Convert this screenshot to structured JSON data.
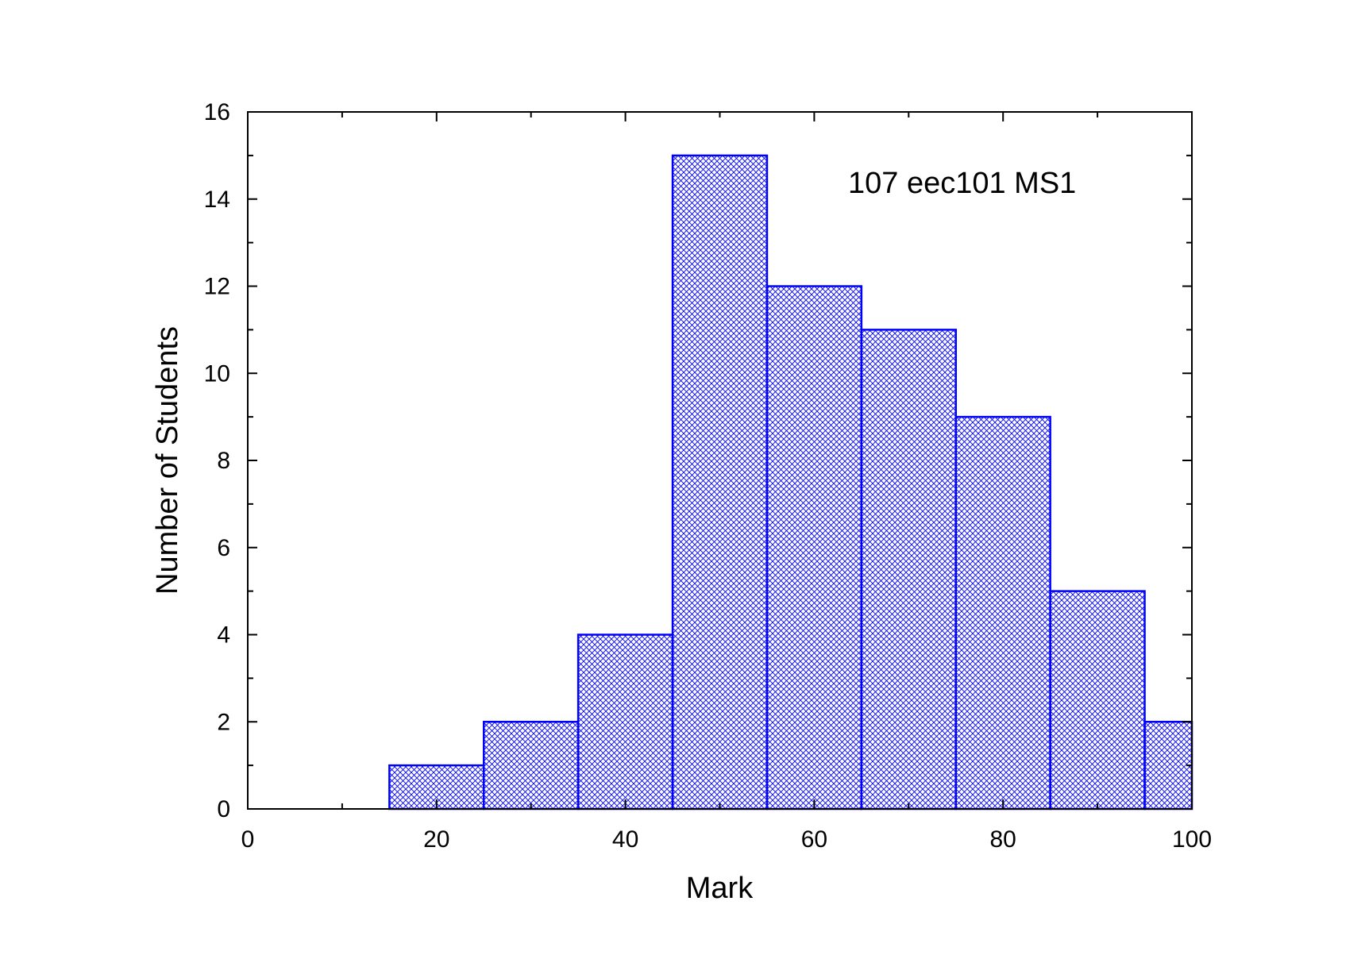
{
  "chart_data": {
    "type": "bar",
    "annotation": "107 eec101 MS1",
    "xlabel": "Mark",
    "ylabel": "Number of Students",
    "xlim": [
      0,
      100
    ],
    "ylim": [
      0,
      16
    ],
    "x_ticks": [
      0,
      20,
      40,
      60,
      80,
      100
    ],
    "x_tick_labels": [
      "0",
      "20",
      "40",
      "60",
      "80",
      "100"
    ],
    "y_ticks": [
      0,
      2,
      4,
      6,
      8,
      10,
      12,
      14,
      16
    ],
    "y_tick_labels": [
      "0",
      "2",
      "4",
      "6",
      "8",
      "10",
      "12",
      "14",
      "16"
    ],
    "grid": false,
    "bins": [
      {
        "from": 15,
        "to": 25,
        "count": 1
      },
      {
        "from": 25,
        "to": 35,
        "count": 2
      },
      {
        "from": 35,
        "to": 45,
        "count": 4
      },
      {
        "from": 45,
        "to": 55,
        "count": 15
      },
      {
        "from": 55,
        "to": 65,
        "count": 12
      },
      {
        "from": 65,
        "to": 75,
        "count": 11
      },
      {
        "from": 75,
        "to": 85,
        "count": 9
      },
      {
        "from": 85,
        "to": 95,
        "count": 5
      },
      {
        "from": 95,
        "to": 100,
        "count": 2
      }
    ],
    "colors": {
      "bar": "#0000ff",
      "axis": "#000000"
    }
  }
}
